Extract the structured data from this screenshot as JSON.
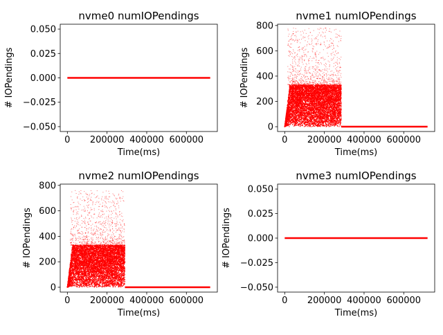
{
  "chart_data": [
    {
      "type": "scatter",
      "title": "nvme0 numIOPendings",
      "xlabel": "Time(ms)",
      "ylabel": "# IOPendings",
      "xlim": [
        -36000,
        756000
      ],
      "ylim": [
        -0.055,
        0.055
      ],
      "x_ticks": [
        0,
        200000,
        400000,
        600000
      ],
      "x_tick_labels": [
        "0",
        "200000",
        "400000",
        "600000"
      ],
      "y_ticks": [
        -0.05,
        -0.025,
        0.0,
        0.025,
        0.05
      ],
      "y_tick_labels": [
        "−0.050",
        "−0.025",
        "0.000",
        "0.025",
        "0.050"
      ],
      "color": "#ff0000",
      "series": [
        {
          "kind": "constant",
          "x": [
            0,
            720000
          ],
          "y": [
            0,
            0
          ]
        }
      ]
    },
    {
      "type": "scatter",
      "title": "nvme1 numIOPendings",
      "xlabel": "Time(ms)",
      "ylabel": "# IOPendings",
      "xlim": [
        -36000,
        756000
      ],
      "ylim": [
        -38,
        810
      ],
      "x_ticks": [
        0,
        200000,
        400000,
        600000
      ],
      "x_tick_labels": [
        "0",
        "200000",
        "400000",
        "600000"
      ],
      "y_ticks": [
        0,
        200,
        400,
        600,
        800
      ],
      "y_tick_labels": [
        "0",
        "200",
        "400",
        "600",
        "800"
      ],
      "color": "#ff0000",
      "series": [
        {
          "kind": "scatter",
          "x_range": [
            0,
            285000
          ],
          "typical_max": 330,
          "peak": 780
        },
        {
          "kind": "constant",
          "x": [
            285000,
            720000
          ],
          "y": [
            0,
            0
          ]
        }
      ]
    },
    {
      "type": "scatter",
      "title": "nvme2 numIOPendings",
      "xlabel": "Time(ms)",
      "ylabel": "# IOPendings",
      "xlim": [
        -36000,
        756000
      ],
      "ylim": [
        -38,
        810
      ],
      "x_ticks": [
        0,
        200000,
        400000,
        600000
      ],
      "x_tick_labels": [
        "0",
        "200000",
        "400000",
        "600000"
      ],
      "y_ticks": [
        0,
        200,
        400,
        600,
        800
      ],
      "y_tick_labels": [
        "0",
        "200",
        "400",
        "600",
        "800"
      ],
      "color": "#ff0000",
      "series": [
        {
          "kind": "scatter",
          "x_range": [
            0,
            290000
          ],
          "typical_max": 330,
          "peak": 760
        },
        {
          "kind": "constant",
          "x": [
            290000,
            720000
          ],
          "y": [
            0,
            0
          ]
        }
      ]
    },
    {
      "type": "scatter",
      "title": "nvme3 numIOPendings",
      "xlabel": "Time(ms)",
      "ylabel": "# IOPendings",
      "xlim": [
        -36000,
        756000
      ],
      "ylim": [
        -0.055,
        0.055
      ],
      "x_ticks": [
        0,
        200000,
        400000,
        600000
      ],
      "x_tick_labels": [
        "0",
        "200000",
        "400000",
        "600000"
      ],
      "y_ticks": [
        -0.05,
        -0.025,
        0.0,
        0.025,
        0.05
      ],
      "y_tick_labels": [
        "−0.050",
        "−0.025",
        "0.000",
        "0.025",
        "0.050"
      ],
      "color": "#ff0000",
      "series": [
        {
          "kind": "constant",
          "x": [
            0,
            720000
          ],
          "y": [
            0,
            0
          ]
        }
      ]
    }
  ]
}
